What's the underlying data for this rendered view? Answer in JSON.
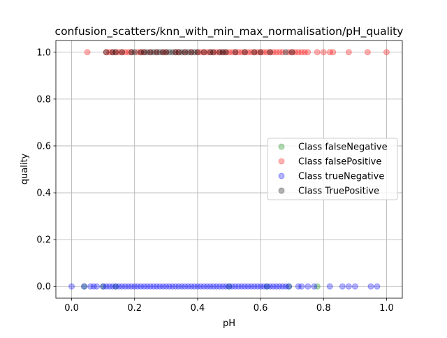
{
  "chart_data": {
    "type": "scatter",
    "title": "confusion_scatters/knn_with_min_max_normalisation/pH_quality",
    "xlabel": "pH",
    "ylabel": "quality",
    "xlim": [
      -0.05,
      1.05
    ],
    "ylim": [
      -0.05,
      1.05
    ],
    "xticks": [
      0.0,
      0.2,
      0.4,
      0.6,
      0.8,
      1.0
    ],
    "xtick_labels": [
      "0.0",
      "0.2",
      "0.4",
      "0.6",
      "0.8",
      "1.0"
    ],
    "yticks": [
      0.0,
      0.2,
      0.4,
      0.6,
      0.8,
      1.0
    ],
    "ytick_labels": [
      "0.0",
      "0.2",
      "0.4",
      "0.6",
      "0.8",
      "1.0"
    ],
    "grid": true,
    "legend_position": "center-right",
    "series": [
      {
        "name": "Class falseNegative",
        "label": "Class falseNegative",
        "color": "#008000",
        "alpha": 0.3,
        "points": [
          [
            0.78,
            0.0
          ],
          [
            0.04,
            0.0
          ],
          [
            0.1,
            0.0
          ],
          [
            0.14,
            0.0
          ],
          [
            0.5,
            0.0
          ],
          [
            0.62,
            0.0
          ],
          [
            0.69,
            0.0
          ]
        ]
      },
      {
        "name": "Class falsePositive",
        "label": "Class falsePositive",
        "color": "#ff0000",
        "alpha": 0.3,
        "points": [
          [
            0.05,
            1.0
          ],
          [
            0.11,
            1.0
          ],
          [
            0.12,
            1.0
          ],
          [
            0.13,
            1.0
          ],
          [
            0.14,
            1.0
          ],
          [
            0.15,
            1.0
          ],
          [
            0.16,
            1.0
          ],
          [
            0.17,
            1.0
          ],
          [
            0.18,
            1.0
          ],
          [
            0.19,
            1.0
          ],
          [
            0.21,
            1.0
          ],
          [
            0.22,
            1.0
          ],
          [
            0.23,
            1.0
          ],
          [
            0.25,
            1.0
          ],
          [
            0.27,
            1.0
          ],
          [
            0.29,
            1.0
          ],
          [
            0.3,
            1.0
          ],
          [
            0.33,
            1.0
          ],
          [
            0.34,
            1.0
          ],
          [
            0.36,
            1.0
          ],
          [
            0.38,
            1.0
          ],
          [
            0.4,
            1.0
          ],
          [
            0.41,
            1.0
          ],
          [
            0.42,
            1.0
          ],
          [
            0.43,
            1.0
          ],
          [
            0.44,
            1.0
          ],
          [
            0.45,
            1.0
          ],
          [
            0.46,
            1.0
          ],
          [
            0.47,
            1.0
          ],
          [
            0.48,
            1.0
          ],
          [
            0.49,
            1.0
          ],
          [
            0.5,
            1.0
          ],
          [
            0.51,
            1.0
          ],
          [
            0.52,
            1.0
          ],
          [
            0.53,
            1.0
          ],
          [
            0.54,
            1.0
          ],
          [
            0.55,
            1.0
          ],
          [
            0.56,
            1.0
          ],
          [
            0.57,
            1.0
          ],
          [
            0.58,
            1.0
          ],
          [
            0.59,
            1.0
          ],
          [
            0.6,
            1.0
          ],
          [
            0.61,
            1.0
          ],
          [
            0.62,
            1.0
          ],
          [
            0.63,
            1.0
          ],
          [
            0.64,
            1.0
          ],
          [
            0.65,
            1.0
          ],
          [
            0.66,
            1.0
          ],
          [
            0.67,
            1.0
          ],
          [
            0.69,
            1.0
          ],
          [
            0.7,
            1.0
          ],
          [
            0.71,
            1.0
          ],
          [
            0.72,
            1.0
          ],
          [
            0.73,
            1.0
          ],
          [
            0.74,
            1.0
          ],
          [
            0.75,
            1.0
          ],
          [
            0.78,
            1.0
          ],
          [
            0.8,
            1.0
          ],
          [
            0.82,
            1.0
          ],
          [
            0.83,
            1.0
          ],
          [
            0.88,
            1.0
          ],
          [
            0.94,
            1.0
          ],
          [
            1.0,
            1.0
          ]
        ]
      },
      {
        "name": "Class trueNegative",
        "label": "Class trueNegative",
        "color": "#0000ff",
        "alpha": 0.3,
        "points": [
          [
            0.0,
            0.0
          ],
          [
            0.04,
            0.0
          ],
          [
            0.06,
            0.0
          ],
          [
            0.07,
            0.0
          ],
          [
            0.08,
            0.0
          ],
          [
            0.1,
            0.0
          ],
          [
            0.11,
            0.0
          ],
          [
            0.12,
            0.0
          ],
          [
            0.13,
            0.0
          ],
          [
            0.14,
            0.0
          ],
          [
            0.15,
            0.0
          ],
          [
            0.16,
            0.0
          ],
          [
            0.17,
            0.0
          ],
          [
            0.18,
            0.0
          ],
          [
            0.19,
            0.0
          ],
          [
            0.2,
            0.0
          ],
          [
            0.21,
            0.0
          ],
          [
            0.22,
            0.0
          ],
          [
            0.23,
            0.0
          ],
          [
            0.24,
            0.0
          ],
          [
            0.25,
            0.0
          ],
          [
            0.26,
            0.0
          ],
          [
            0.27,
            0.0
          ],
          [
            0.28,
            0.0
          ],
          [
            0.29,
            0.0
          ],
          [
            0.3,
            0.0
          ],
          [
            0.31,
            0.0
          ],
          [
            0.32,
            0.0
          ],
          [
            0.33,
            0.0
          ],
          [
            0.34,
            0.0
          ],
          [
            0.35,
            0.0
          ],
          [
            0.36,
            0.0
          ],
          [
            0.37,
            0.0
          ],
          [
            0.38,
            0.0
          ],
          [
            0.39,
            0.0
          ],
          [
            0.4,
            0.0
          ],
          [
            0.41,
            0.0
          ],
          [
            0.42,
            0.0
          ],
          [
            0.43,
            0.0
          ],
          [
            0.44,
            0.0
          ],
          [
            0.45,
            0.0
          ],
          [
            0.46,
            0.0
          ],
          [
            0.47,
            0.0
          ],
          [
            0.48,
            0.0
          ],
          [
            0.49,
            0.0
          ],
          [
            0.5,
            0.0
          ],
          [
            0.51,
            0.0
          ],
          [
            0.52,
            0.0
          ],
          [
            0.53,
            0.0
          ],
          [
            0.54,
            0.0
          ],
          [
            0.55,
            0.0
          ],
          [
            0.56,
            0.0
          ],
          [
            0.57,
            0.0
          ],
          [
            0.58,
            0.0
          ],
          [
            0.59,
            0.0
          ],
          [
            0.6,
            0.0
          ],
          [
            0.61,
            0.0
          ],
          [
            0.62,
            0.0
          ],
          [
            0.63,
            0.0
          ],
          [
            0.64,
            0.0
          ],
          [
            0.65,
            0.0
          ],
          [
            0.66,
            0.0
          ],
          [
            0.67,
            0.0
          ],
          [
            0.68,
            0.0
          ],
          [
            0.69,
            0.0
          ],
          [
            0.72,
            0.0
          ],
          [
            0.73,
            0.0
          ],
          [
            0.75,
            0.0
          ],
          [
            0.77,
            0.0
          ],
          [
            0.82,
            0.0
          ],
          [
            0.86,
            0.0
          ],
          [
            0.88,
            0.0
          ],
          [
            0.9,
            0.0
          ],
          [
            0.95,
            0.0
          ],
          [
            0.97,
            0.0
          ]
        ]
      },
      {
        "name": "Class TruePositive",
        "label": "Class TruePositive",
        "color": "#000000",
        "alpha": 0.3,
        "points": [
          [
            0.11,
            1.0
          ],
          [
            0.13,
            1.0
          ],
          [
            0.14,
            1.0
          ],
          [
            0.16,
            1.0
          ],
          [
            0.19,
            1.0
          ],
          [
            0.2,
            1.0
          ],
          [
            0.22,
            1.0
          ],
          [
            0.23,
            1.0
          ],
          [
            0.24,
            1.0
          ],
          [
            0.25,
            1.0
          ],
          [
            0.26,
            1.0
          ],
          [
            0.27,
            1.0
          ],
          [
            0.28,
            1.0
          ],
          [
            0.29,
            1.0
          ],
          [
            0.3,
            1.0
          ],
          [
            0.31,
            1.0
          ],
          [
            0.32,
            1.0
          ],
          [
            0.33,
            1.0
          ],
          [
            0.34,
            1.0
          ],
          [
            0.35,
            1.0
          ],
          [
            0.36,
            1.0
          ],
          [
            0.37,
            1.0
          ],
          [
            0.38,
            1.0
          ],
          [
            0.39,
            1.0
          ],
          [
            0.4,
            1.0
          ],
          [
            0.42,
            1.0
          ],
          [
            0.44,
            1.0
          ],
          [
            0.45,
            1.0
          ],
          [
            0.47,
            1.0
          ],
          [
            0.48,
            1.0
          ],
          [
            0.49,
            1.0
          ],
          [
            0.52,
            1.0
          ],
          [
            0.55,
            1.0
          ],
          [
            0.58,
            1.0
          ],
          [
            0.6,
            1.0
          ],
          [
            0.63,
            1.0
          ],
          [
            0.68,
            1.0
          ],
          [
            0.7,
            1.0
          ]
        ]
      }
    ]
  }
}
